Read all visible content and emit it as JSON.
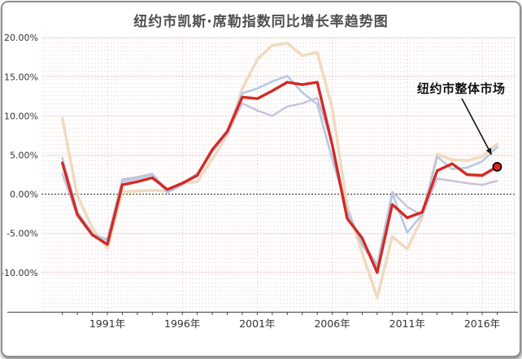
{
  "chart_data": {
    "type": "line",
    "title": "纽约市凯斯·席勒指数同比增长率趋势图",
    "xlabel": "",
    "ylabel": "",
    "x": [
      1988,
      1989,
      1990,
      1991,
      1992,
      1993,
      1994,
      1995,
      1996,
      1997,
      1998,
      1999,
      2000,
      2001,
      2002,
      2003,
      2004,
      2005,
      2006,
      2007,
      2008,
      2009,
      2010,
      2011,
      2012,
      2013,
      2014,
      2015,
      2016,
      2017
    ],
    "x_tick_years": [
      1991,
      1996,
      2001,
      2006,
      2011,
      2016
    ],
    "x_tick_labels": [
      "1991年",
      "1996年",
      "2001年",
      "2006年",
      "2011年",
      "2016年"
    ],
    "y_tick_values": [
      20,
      15,
      10,
      5,
      0,
      -5,
      -10
    ],
    "y_tick_labels": [
      "20.00%",
      "15.00%",
      "10.00%",
      "5.00%",
      "0.00%",
      "-5.00%",
      "-10.00%"
    ],
    "ylim": [
      -15,
      21
    ],
    "grid": true,
    "zero_line": "dotted",
    "legend_position": "none",
    "series": [
      {
        "id": "tan",
        "name": "",
        "values": [
          9.7,
          -0.2,
          -4.3,
          -6.9,
          0.3,
          0.4,
          0.5,
          0.4,
          1.4,
          1.6,
          4.5,
          7.5,
          13.5,
          17.2,
          19.0,
          19.3,
          17.7,
          18.1,
          11.0,
          -1.5,
          -7.5,
          -13.2,
          -5.4,
          -7.0,
          -3.0,
          5.1,
          4.4,
          4.3,
          4.8,
          6.4
        ]
      },
      {
        "id": "lavender",
        "name": "",
        "values": [
          2.6,
          -2.8,
          -5.3,
          -5.7,
          1.9,
          2.2,
          2.6,
          0.5,
          1.3,
          2.7,
          5.5,
          7.7,
          11.6,
          10.7,
          10.0,
          11.2,
          11.6,
          12.3,
          6.5,
          -2.5,
          -6.0,
          -9.0,
          0.3,
          -1.6,
          -2.7,
          2.0,
          1.7,
          1.4,
          1.2,
          1.7
        ]
      },
      {
        "id": "blue",
        "name": "",
        "values": [
          4.6,
          -2.2,
          -5.0,
          -5.9,
          1.6,
          2.0,
          2.5,
          0.2,
          1.2,
          2.6,
          5.4,
          7.8,
          12.9,
          13.5,
          14.4,
          15.1,
          13.0,
          11.5,
          4.5,
          -2.0,
          -6.5,
          -9.3,
          0.1,
          -4.9,
          -2.6,
          4.8,
          3.2,
          3.4,
          4.2,
          6.0
        ]
      },
      {
        "id": "overall",
        "name": "纽约市整体市场",
        "values": [
          4.0,
          -2.6,
          -5.2,
          -6.4,
          1.2,
          1.6,
          2.1,
          0.6,
          1.4,
          2.4,
          5.7,
          8.0,
          12.4,
          12.2,
          13.2,
          14.3,
          14.0,
          14.3,
          6.3,
          -3.1,
          -5.6,
          -10.0,
          -1.3,
          -3.0,
          -2.3,
          3.0,
          3.9,
          2.5,
          2.4,
          3.5
        ]
      }
    ],
    "annotation": {
      "label": "纽约市整体市场",
      "points_to_series": "overall",
      "marker": "red-dot-on-last-point"
    }
  },
  "colors": {
    "overall": "#d42a24",
    "tan": "#f1dac0",
    "blue": "#b5c9e2",
    "lavender": "#c7c2da",
    "dot_fill": "#e0231c",
    "dot_stroke": "#000000",
    "grid_h": "#ecdede",
    "grid_v": "#d9c3c3",
    "zero_line": "#222222",
    "axis": "#444444",
    "tick_label": "#333333",
    "title": "#4f4f4f",
    "annotation_text": "#121212",
    "arrow": "#111111"
  }
}
